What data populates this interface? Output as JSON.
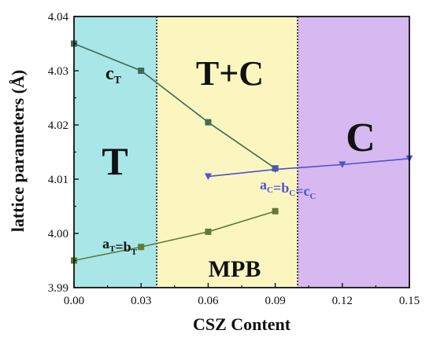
{
  "chart_data": {
    "type": "line",
    "xlabel": "CSZ Content",
    "ylabel": "lattice parameters (Å)",
    "xlim": [
      0.0,
      0.15
    ],
    "ylim": [
      3.99,
      4.04
    ],
    "x_ticks": [
      "0.00",
      "0.03",
      "0.06",
      "0.09",
      "0.12",
      "0.15"
    ],
    "y_ticks": [
      "3.99",
      "4.00",
      "4.01",
      "4.02",
      "4.03",
      "4.04"
    ],
    "regions": [
      {
        "label": "T",
        "x_start": 0.0,
        "x_end": 0.037,
        "color": "#a9e6e8"
      },
      {
        "label": "T+C",
        "x_start": 0.037,
        "x_end": 0.1,
        "color": "#fbf6bf"
      },
      {
        "label": "C",
        "x_start": 0.1,
        "x_end": 0.15,
        "color": "#d6b9f0"
      }
    ],
    "mpb_label": "MPB",
    "mpb_color": "#e8303a",
    "series": [
      {
        "name": "cT",
        "label_main": "c",
        "label_sub": "T",
        "color": "#3d6b57",
        "marker": "square",
        "x": [
          0.0,
          0.03,
          0.06,
          0.09
        ],
        "y": [
          4.035,
          4.03,
          4.0205,
          4.012
        ]
      },
      {
        "name": "aT=bT",
        "label_parts": [
          [
            "a",
            "T"
          ],
          [
            "=b",
            "T"
          ]
        ],
        "color": "#5f7a3a",
        "marker": "square",
        "x": [
          0.0,
          0.03,
          0.06,
          0.09
        ],
        "y": [
          3.995,
          3.9975,
          4.0003,
          4.0041
        ]
      },
      {
        "name": "aC=bC=cC",
        "label_parts": [
          [
            "a",
            "C"
          ],
          [
            "=b",
            "C"
          ],
          [
            "=c",
            "C"
          ]
        ],
        "color": "#5050d8",
        "marker": "triangle-down",
        "x": [
          0.06,
          0.09,
          0.12,
          0.15
        ],
        "y": [
          4.0105,
          4.0118,
          4.0127,
          4.0138
        ]
      }
    ]
  }
}
